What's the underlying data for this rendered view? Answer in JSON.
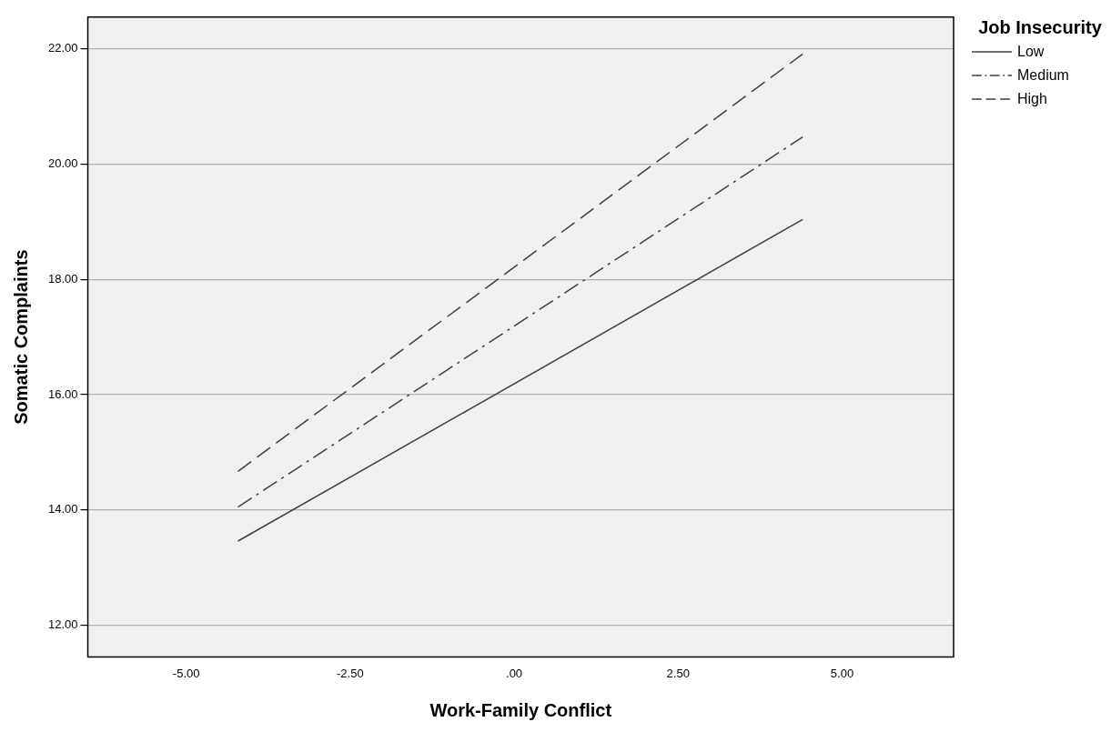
{
  "chart_data": {
    "type": "line",
    "xlabel": "Work-Family Conflict",
    "ylabel": "Somatic Complaints",
    "legend_title": "Job Insecurity",
    "xlim": [
      -6.5,
      6.7
    ],
    "ylim": [
      11.45,
      22.55
    ],
    "xticks": [
      {
        "value": -5,
        "label": "-5.00"
      },
      {
        "value": -2.5,
        "label": "-2.50"
      },
      {
        "value": 0,
        "label": ".00"
      },
      {
        "value": 2.5,
        "label": "2.50"
      },
      {
        "value": 5,
        "label": "5.00"
      }
    ],
    "yticks": [
      {
        "value": 12,
        "label": "12.00"
      },
      {
        "value": 14,
        "label": "14.00"
      },
      {
        "value": 16,
        "label": "16.00"
      },
      {
        "value": 18,
        "label": "18.00"
      },
      {
        "value": 20,
        "label": "20.00"
      },
      {
        "value": 22,
        "label": "22.00"
      }
    ],
    "x": [
      -4.21,
      4.4
    ],
    "series": [
      {
        "name": "Low",
        "color": "#404040",
        "values": [
          13.46,
          19.04
        ],
        "line_style": "solid"
      },
      {
        "name": "Medium",
        "color": "#404040",
        "values": [
          14.05,
          20.47
        ],
        "line_style": "dashdot"
      },
      {
        "name": "High",
        "color": "#404040",
        "values": [
          14.67,
          21.91
        ],
        "line_style": "dashed"
      }
    ],
    "grid": "y",
    "legend": "top right",
    "marker": "none"
  }
}
